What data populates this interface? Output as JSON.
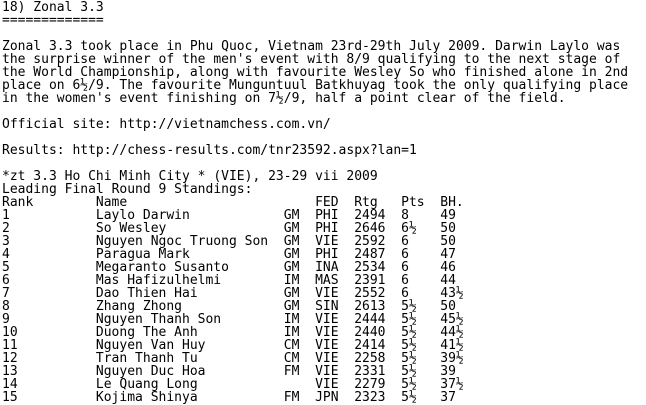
{
  "heading": "18) Zonal 3.3",
  "underline": "=============",
  "paragraph": [
    "Zonal 3.3 took place in Phu Quoc, Vietnam 23rd-29th July 2009. Darwin Laylo was",
    "the surprise winner of the men's event with 8/9 qualifying to the next stage of",
    "the World Championship, along with favourite Wesley So who finished alone in 2nd",
    "place on 6½/9. The favourite Munguntuul Batkhuyag took the only qualifying place",
    "in the women's event finishing on 7½/9, half a point clear of the field."
  ],
  "official_site": "Official site: http://vietnamchess.com.vn/",
  "results": "Results: http://chess-results.com/tnr23592.aspx?lan=1",
  "event": "*zt 3.3 Ho Chi Minh City * (VIE), 23-29 vii 2009",
  "standings_title": "Leading Final Round 9 Standings:",
  "table": {
    "columns": [
      "Rank",
      "Name",
      null,
      "FED",
      "Rtg",
      "Pts",
      "BH."
    ],
    "rows": [
      [
        "1",
        "Laylo Darwin",
        "GM",
        "PHI",
        "2494",
        "8",
        "49"
      ],
      [
        "2",
        "So Wesley",
        "GM",
        "PHI",
        "2646",
        "6½",
        "50"
      ],
      [
        "3",
        "Nguyen Ngoc Truong Son",
        "GM",
        "VIE",
        "2592",
        "6",
        "50"
      ],
      [
        "4",
        "Paragua Mark",
        "GM",
        "PHI",
        "2487",
        "6",
        "47"
      ],
      [
        "5",
        "Megaranto Susanto",
        "GM",
        "INA",
        "2534",
        "6",
        "46"
      ],
      [
        "6",
        "Mas Hafizulhelmi",
        "IM",
        "MAS",
        "2391",
        "6",
        "44"
      ],
      [
        "7",
        "Dao Thien Hai",
        "GM",
        "VIE",
        "2552",
        "6",
        "43½"
      ],
      [
        "8",
        "Zhang Zhong",
        "GM",
        "SIN",
        "2613",
        "5½",
        "50"
      ],
      [
        "9",
        "Nguyen Thanh Son",
        "IM",
        "VIE",
        "2444",
        "5½",
        "45½"
      ],
      [
        "10",
        "Duong The Anh",
        "IM",
        "VIE",
        "2440",
        "5½",
        "44½"
      ],
      [
        "11",
        "Nguyen Van Huy",
        "CM",
        "VIE",
        "2414",
        "5½",
        "41½"
      ],
      [
        "12",
        "Tran Thanh Tu",
        "CM",
        "VIE",
        "2258",
        "5½",
        "39½"
      ],
      [
        "13",
        "Nguyen Duc Hoa",
        "FM",
        "VIE",
        "2331",
        "5½",
        "39"
      ],
      [
        "14",
        "Le Quang Long",
        null,
        "VIE",
        "2279",
        "5½",
        "37½"
      ],
      [
        "15",
        "Kojima Shinya",
        "FM",
        "JPN",
        "2323",
        "5½",
        "37"
      ]
    ]
  }
}
